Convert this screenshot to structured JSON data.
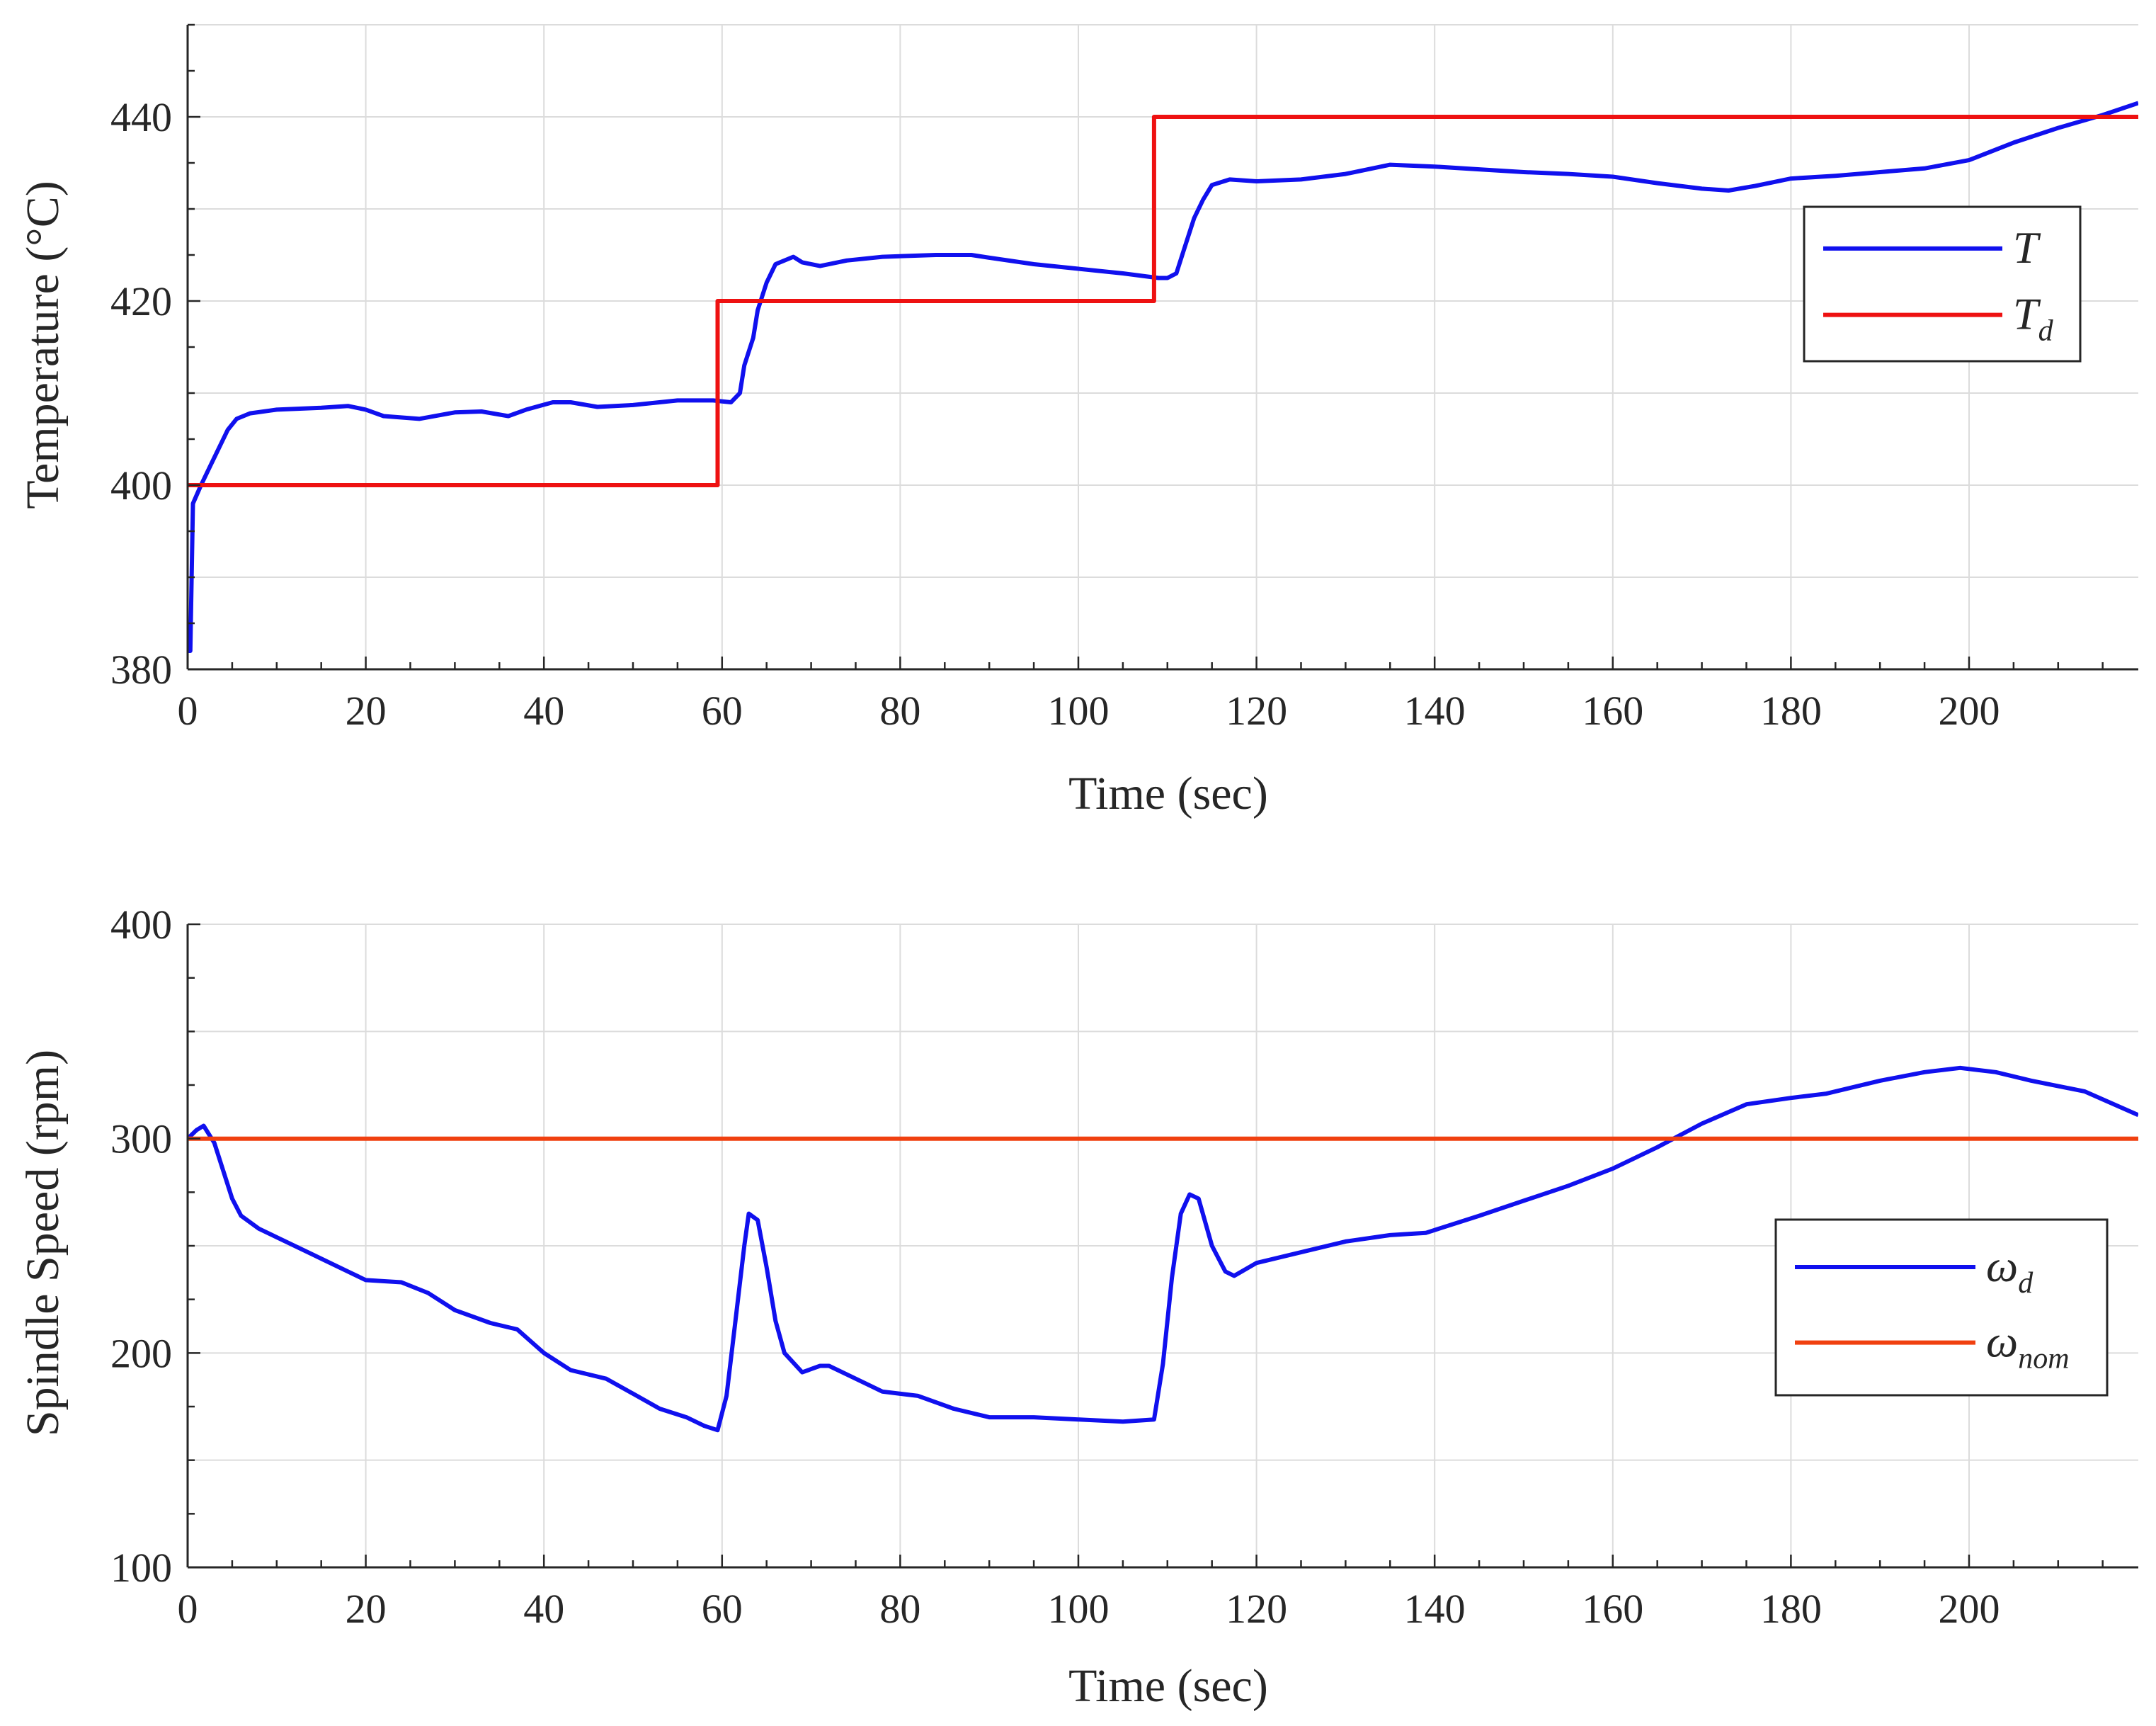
{
  "chart_data": [
    {
      "type": "line",
      "xlabel": "Time (sec)",
      "ylabel": "Temperature (°C)",
      "xlim": [
        0,
        219
      ],
      "ylim": [
        380,
        450
      ],
      "xticks": [
        0,
        20,
        40,
        60,
        80,
        100,
        120,
        140,
        160,
        180,
        200
      ],
      "yticks": [
        380,
        400,
        420,
        440
      ],
      "grid": true,
      "legend": "upper-right",
      "series": [
        {
          "name": "T",
          "name_base": "T",
          "name_sub": "",
          "color": "#1010ee",
          "points": [
            [
              0,
              382
            ],
            [
              0.3,
              382
            ],
            [
              0.6,
              398
            ],
            [
              1.5,
              400
            ],
            [
              2.5,
              402
            ],
            [
              3.5,
              404
            ],
            [
              4.5,
              406
            ],
            [
              5.5,
              407.2
            ],
            [
              7,
              407.8
            ],
            [
              10,
              408.2
            ],
            [
              15,
              408.4
            ],
            [
              18,
              408.6
            ],
            [
              20,
              408.2
            ],
            [
              22,
              407.5
            ],
            [
              26,
              407.2
            ],
            [
              30,
              407.9
            ],
            [
              33,
              408
            ],
            [
              36,
              407.5
            ],
            [
              38,
              408.2
            ],
            [
              41,
              409
            ],
            [
              43,
              409
            ],
            [
              46,
              408.5
            ],
            [
              50,
              408.7
            ],
            [
              55,
              409.2
            ],
            [
              59,
              409.2
            ],
            [
              61,
              409
            ],
            [
              62,
              410
            ],
            [
              62.5,
              413
            ],
            [
              63.5,
              416
            ],
            [
              64,
              419
            ],
            [
              65,
              422
            ],
            [
              66,
              424
            ],
            [
              68,
              424.8
            ],
            [
              69,
              424.2
            ],
            [
              71,
              423.8
            ],
            [
              74,
              424.4
            ],
            [
              78,
              424.8
            ],
            [
              84,
              425
            ],
            [
              88,
              425
            ],
            [
              90,
              424.7
            ],
            [
              95,
              424
            ],
            [
              100,
              423.5
            ],
            [
              105,
              423
            ],
            [
              109,
              422.5
            ],
            [
              110,
              422.5
            ],
            [
              111,
              423
            ],
            [
              112,
              426
            ],
            [
              113,
              429
            ],
            [
              114,
              431
            ],
            [
              115,
              432.6
            ],
            [
              117,
              433.2
            ],
            [
              120,
              433
            ],
            [
              125,
              433.2
            ],
            [
              130,
              433.8
            ],
            [
              135,
              434.8
            ],
            [
              140,
              434.6
            ],
            [
              145,
              434.3
            ],
            [
              150,
              434
            ],
            [
              155,
              433.8
            ],
            [
              160,
              433.5
            ],
            [
              165,
              432.8
            ],
            [
              170,
              432.2
            ],
            [
              173,
              432
            ],
            [
              176,
              432.5
            ],
            [
              180,
              433.3
            ],
            [
              185,
              433.6
            ],
            [
              190,
              434
            ],
            [
              195,
              434.4
            ],
            [
              200,
              435.3
            ],
            [
              205,
              437.2
            ],
            [
              210,
              438.8
            ],
            [
              215,
              440.2
            ],
            [
              219,
              441.5
            ]
          ]
        },
        {
          "name": "Td",
          "name_base": "T",
          "name_sub": "d",
          "color": "#ee1111",
          "points": [
            [
              0,
              400
            ],
            [
              59.5,
              400
            ],
            [
              59.5,
              420
            ],
            [
              108.5,
              420
            ],
            [
              108.5,
              440
            ],
            [
              219,
              440
            ]
          ]
        }
      ]
    },
    {
      "type": "line",
      "xlabel": "Time (sec)",
      "ylabel": "Spindle Speed (rpm)",
      "xlim": [
        0,
        219
      ],
      "ylim": [
        100,
        400
      ],
      "xticks": [
        0,
        20,
        40,
        60,
        80,
        100,
        120,
        140,
        160,
        180,
        200
      ],
      "yticks": [
        100,
        200,
        300,
        400
      ],
      "grid": true,
      "legend": "right",
      "series": [
        {
          "name": "ωd",
          "name_base": "ω",
          "name_sub": "d",
          "color": "#1010ee",
          "points": [
            [
              0,
              300
            ],
            [
              1,
              304
            ],
            [
              1.8,
              306
            ],
            [
              3,
              298
            ],
            [
              4,
              285
            ],
            [
              5,
              272
            ],
            [
              6,
              264
            ],
            [
              8,
              258
            ],
            [
              10,
              254
            ],
            [
              14,
              246
            ],
            [
              18,
              238
            ],
            [
              20,
              234
            ],
            [
              24,
              233
            ],
            [
              27,
              228
            ],
            [
              30,
              220
            ],
            [
              34,
              214
            ],
            [
              37,
              211
            ],
            [
              40,
              200
            ],
            [
              43,
              192
            ],
            [
              47,
              188
            ],
            [
              50,
              181
            ],
            [
              53,
              174
            ],
            [
              56,
              170
            ],
            [
              58,
              166
            ],
            [
              59.5,
              164
            ],
            [
              60.5,
              180
            ],
            [
              61.5,
              215
            ],
            [
              62.5,
              250
            ],
            [
              63,
              265
            ],
            [
              64,
              262
            ],
            [
              65,
              240
            ],
            [
              66,
              215
            ],
            [
              67,
              200
            ],
            [
              69,
              191
            ],
            [
              71,
              194
            ],
            [
              72,
              194
            ],
            [
              74,
              190
            ],
            [
              76,
              186
            ],
            [
              78,
              182
            ],
            [
              82,
              180
            ],
            [
              86,
              174
            ],
            [
              90,
              170
            ],
            [
              95,
              170
            ],
            [
              100,
              169
            ],
            [
              105,
              168
            ],
            [
              108.5,
              169
            ],
            [
              109.5,
              195
            ],
            [
              110.5,
              235
            ],
            [
              111.5,
              265
            ],
            [
              112.5,
              274
            ],
            [
              113.5,
              272
            ],
            [
              115,
              250
            ],
            [
              116.5,
              238
            ],
            [
              117.5,
              236
            ],
            [
              120,
              242
            ],
            [
              125,
              247
            ],
            [
              130,
              252
            ],
            [
              135,
              255
            ],
            [
              139,
              256
            ],
            [
              145,
              264
            ],
            [
              150,
              271
            ],
            [
              155,
              278
            ],
            [
              160,
              286
            ],
            [
              165,
              296
            ],
            [
              170,
              307
            ],
            [
              175,
              316
            ],
            [
              180,
              319
            ],
            [
              184,
              321
            ],
            [
              190,
              327
            ],
            [
              195,
              331
            ],
            [
              199,
              333
            ],
            [
              203,
              331
            ],
            [
              207,
              327
            ],
            [
              213,
              322
            ],
            [
              219,
              311
            ]
          ]
        },
        {
          "name": "ωnom",
          "name_base": "ω",
          "name_sub": "nom",
          "color": "#f04010",
          "points": [
            [
              0,
              300
            ],
            [
              219,
              300
            ]
          ]
        }
      ]
    }
  ]
}
